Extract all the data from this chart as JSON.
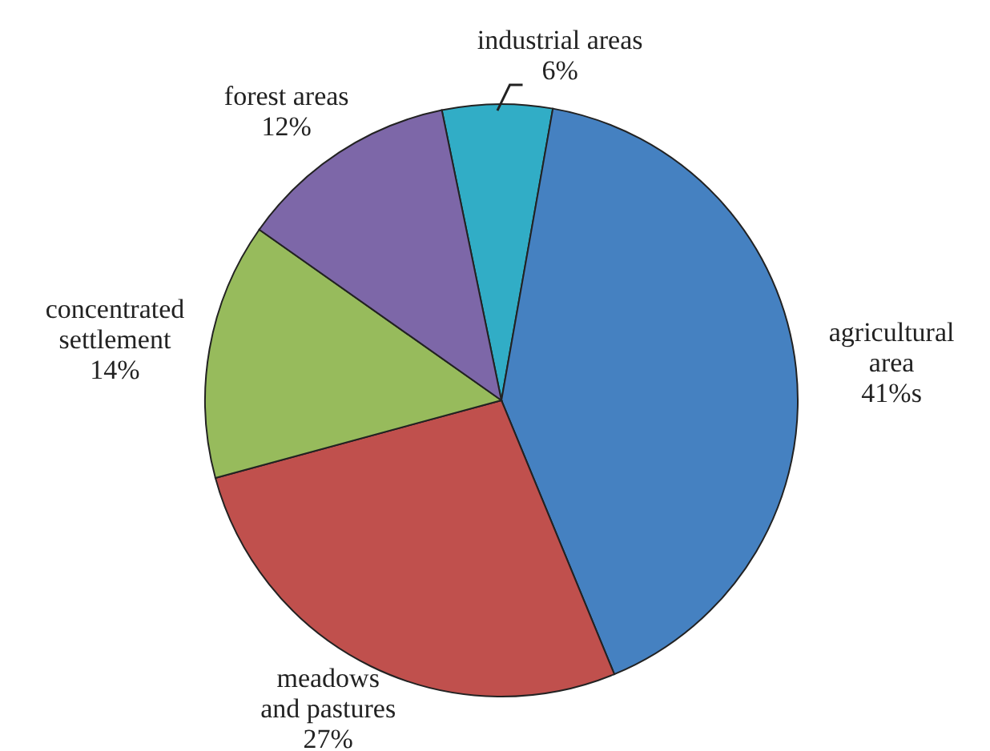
{
  "chart_data": {
    "type": "pie",
    "categories": [
      "industrial areas",
      "agricultural\narea",
      "meadows\nand pastures",
      "concentrated\nsettlement",
      "forest areas"
    ],
    "values": [
      6,
      41,
      27,
      14,
      12
    ],
    "value_labels": [
      "6%",
      "41%s",
      "27%",
      "14%",
      "12%"
    ],
    "colors": [
      "#31adc6",
      "#4581c1",
      "#c0504d",
      "#97bb5c",
      "#7d67a8"
    ]
  }
}
